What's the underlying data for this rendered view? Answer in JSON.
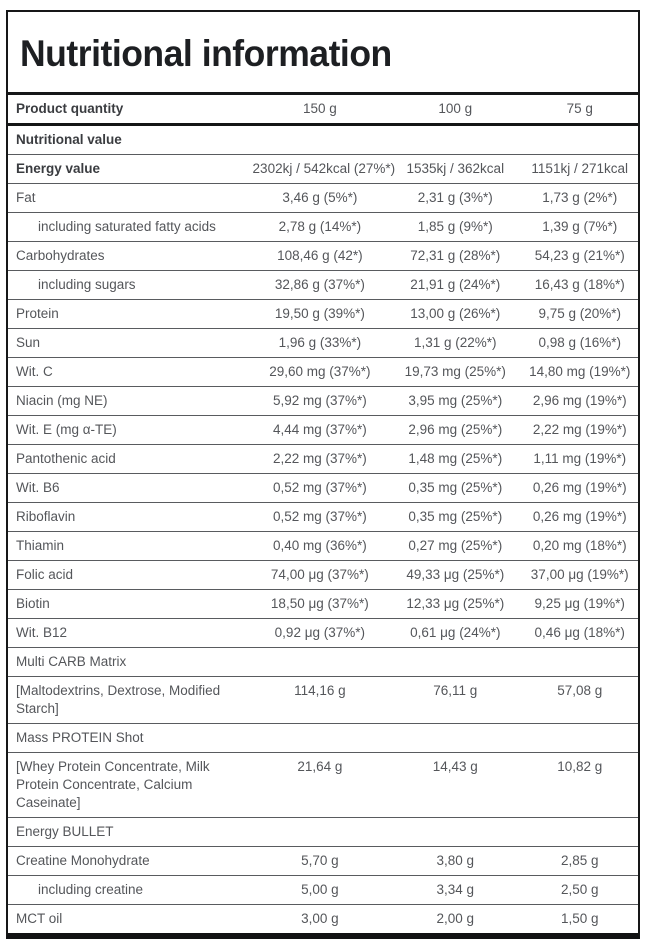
{
  "title": "Nutritional information",
  "header": {
    "label": "Product quantity",
    "values": [
      "150 g",
      "100 g",
      "75 g"
    ]
  },
  "rows": [
    {
      "type": "section",
      "bold": true,
      "label": "Nutritional value"
    },
    {
      "type": "data",
      "bold": true,
      "indent": false,
      "label": "Energy value",
      "values": [
        "2302kj / 542kcal (27%*)",
        "1535kj / 362kcal",
        "1151kj / 271kcal"
      ]
    },
    {
      "type": "data",
      "bold": false,
      "indent": false,
      "label": "Fat",
      "values": [
        "3,46 g (5%*)",
        "2,31 g (3%*)",
        "1,73 g (2%*)"
      ]
    },
    {
      "type": "data",
      "bold": false,
      "indent": true,
      "label": "including saturated fatty acids",
      "values": [
        "2,78 g (14%*)",
        "1,85 g (9%*)",
        "1,39 g (7%*)"
      ]
    },
    {
      "type": "data",
      "bold": false,
      "indent": false,
      "label": "Carbohydrates",
      "values": [
        "108,46 g (42*)",
        "72,31 g (28%*)",
        "54,23 g (21%*)"
      ]
    },
    {
      "type": "data",
      "bold": false,
      "indent": true,
      "label": "including sugars",
      "values": [
        "32,86 g (37%*)",
        "21,91 g (24%*)",
        "16,43 g (18%*)"
      ]
    },
    {
      "type": "data",
      "bold": false,
      "indent": false,
      "label": "Protein",
      "values": [
        "19,50 g (39%*)",
        "13,00 g (26%*)",
        "9,75 g (20%*)"
      ]
    },
    {
      "type": "data",
      "bold": false,
      "indent": false,
      "label": "Sun",
      "values": [
        "1,96 g (33%*)",
        "1,31 g (22%*)",
        "0,98 g (16%*)"
      ]
    },
    {
      "type": "data",
      "bold": false,
      "indent": false,
      "label": "Wit. C",
      "values": [
        "29,60 mg (37%*)",
        "19,73 mg (25%*)",
        "14,80 mg (19%*)"
      ]
    },
    {
      "type": "data",
      "bold": false,
      "indent": false,
      "label": "Niacin (mg NE)",
      "values": [
        "5,92 mg (37%*)",
        "3,95 mg (25%*)",
        "2,96 mg (19%*)"
      ]
    },
    {
      "type": "data",
      "bold": false,
      "indent": false,
      "label": "Wit. E (mg α-TE)",
      "values": [
        "4,44 mg (37%*)",
        "2,96 mg (25%*)",
        "2,22 mg (19%*)"
      ]
    },
    {
      "type": "data",
      "bold": false,
      "indent": false,
      "label": "Pantothenic acid",
      "values": [
        "2,22 mg (37%*)",
        "1,48 mg (25%*)",
        "1,11 mg (19%*)"
      ]
    },
    {
      "type": "data",
      "bold": false,
      "indent": false,
      "label": "Wit. B6",
      "values": [
        "0,52 mg (37%*)",
        "0,35 mg (25%*)",
        "0,26 mg (19%*)"
      ]
    },
    {
      "type": "data",
      "bold": false,
      "indent": false,
      "label": "Riboflavin",
      "values": [
        "0,52 mg (37%*)",
        "0,35 mg (25%*)",
        "0,26 mg (19%*)"
      ]
    },
    {
      "type": "data",
      "bold": false,
      "indent": false,
      "label": "Thiamin",
      "values": [
        "0,40 mg (36%*)",
        "0,27 mg (25%*)",
        "0,20 mg (18%*)"
      ]
    },
    {
      "type": "data",
      "bold": false,
      "indent": false,
      "label": "Folic acid",
      "values": [
        "74,00 μg (37%*)",
        "49,33 μg (25%*)",
        "37,00 μg (19%*)"
      ]
    },
    {
      "type": "data",
      "bold": false,
      "indent": false,
      "label": "Biotin",
      "values": [
        "18,50 μg (37%*)",
        "12,33 μg (25%*)",
        "9,25 μg (19%*)"
      ]
    },
    {
      "type": "data",
      "bold": false,
      "indent": false,
      "label": "Wit. B12",
      "values": [
        "0,92 μg (37%*)",
        "0,61 μg (24%*)",
        "0,46 μg (18%*)"
      ]
    },
    {
      "type": "section",
      "bold": false,
      "label": "Multi CARB Matrix"
    },
    {
      "type": "data",
      "bold": false,
      "indent": false,
      "label": "[Maltodextrins, Dextrose, Modified Starch]",
      "values": [
        "114,16 g",
        "76,11 g",
        "57,08 g"
      ]
    },
    {
      "type": "section",
      "bold": false,
      "label": "Mass PROTEIN Shot"
    },
    {
      "type": "data",
      "bold": false,
      "indent": false,
      "label": "[Whey Protein Concentrate, Milk Protein Concentrate, Calcium Caseinate]",
      "values": [
        "21,64 g",
        "14,43 g",
        "10,82 g"
      ]
    },
    {
      "type": "section",
      "bold": false,
      "label": "Energy BULLET"
    },
    {
      "type": "data",
      "bold": false,
      "indent": false,
      "label": "Creatine Monohydrate",
      "values": [
        "5,70 g",
        "3,80 g",
        "2,85 g"
      ]
    },
    {
      "type": "data",
      "bold": false,
      "indent": true,
      "label": "including creatine",
      "values": [
        "5,00 g",
        "3,34 g",
        "2,50 g"
      ]
    },
    {
      "type": "data",
      "bold": false,
      "indent": false,
      "label": "MCT oil",
      "values": [
        "3,00 g",
        "2,00 g",
        "1,50 g"
      ]
    }
  ],
  "colors": {
    "border_heavy": "#161718",
    "border_row": "#595b5f",
    "text_regular": "#54565a",
    "text_bold": "#3a3c40",
    "title": "#1d1f22",
    "background": "#ffffff"
  }
}
